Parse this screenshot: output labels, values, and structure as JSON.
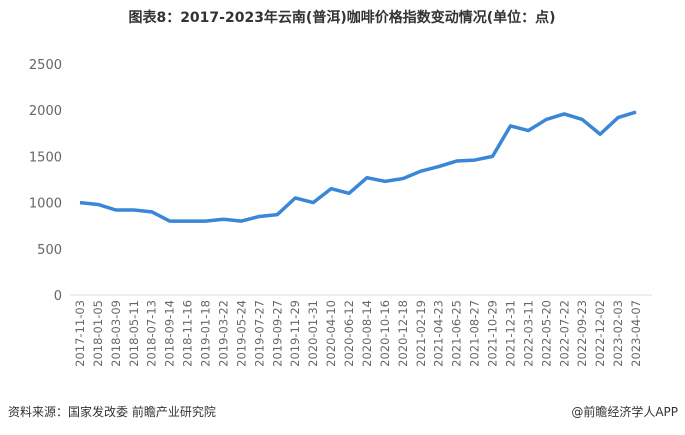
{
  "chart_data": {
    "type": "line",
    "title": "图表8：2017-2023年云南(普洱)咖啡价格指数变动情况(单位：点)",
    "categories": [
      "2017-11-03",
      "2018-01-05",
      "2018-03-09",
      "2018-05-11",
      "2018-07-13",
      "2018-09-14",
      "2018-11-16",
      "2019-01-18",
      "2019-03-22",
      "2019-05-24",
      "2019-07-27",
      "2019-09-27",
      "2019-11-29",
      "2020-01-31",
      "2020-04-10",
      "2020-06-12",
      "2020-08-14",
      "2020-10-16",
      "2020-12-18",
      "2021-02-19",
      "2021-04-23",
      "2021-06-25",
      "2021-08-27",
      "2021-10-29",
      "2021-12-31",
      "2022-03-11",
      "2022-05-20",
      "2022-07-22",
      "2022-09-23",
      "2022-12-02",
      "2023-02-03",
      "2023-04-07"
    ],
    "series": [
      {
        "name": "云南(普洱)咖啡价格指数",
        "color": "#3a86d8",
        "values": [
          1000,
          980,
          920,
          920,
          900,
          800,
          800,
          800,
          820,
          800,
          850,
          870,
          1050,
          1000,
          1150,
          1100,
          1270,
          1230,
          1260,
          1340,
          1390,
          1450,
          1460,
          1500,
          1830,
          1780,
          1900,
          1960,
          1900,
          1740,
          1920,
          1980
        ]
      }
    ],
    "ylim": [
      0,
      2500
    ],
    "yticks": [
      0,
      500,
      1000,
      1500,
      2000,
      2500
    ],
    "grid": false,
    "source": "资料来源：国家发改委 前瞻产业研究院",
    "credit": "@前瞻经济学人APP"
  }
}
